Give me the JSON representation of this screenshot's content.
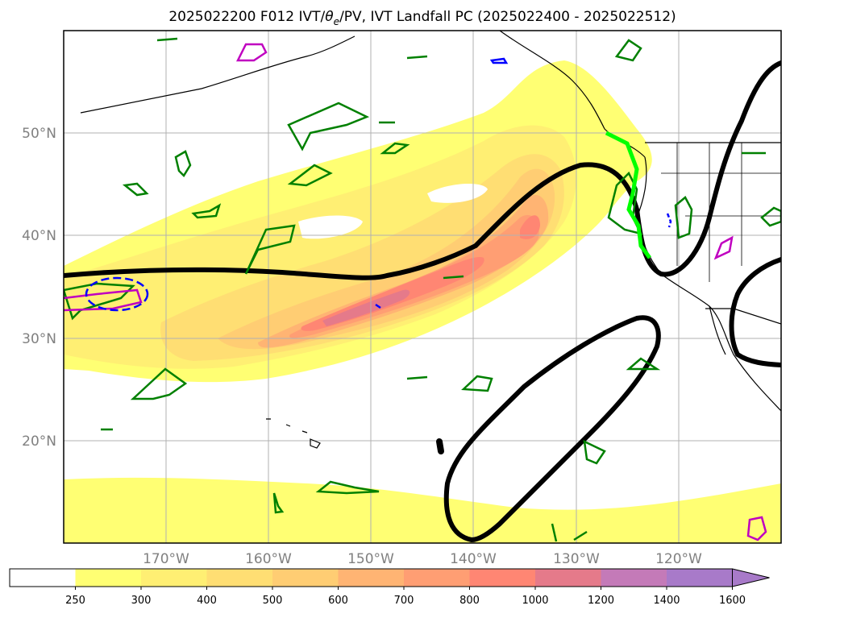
{
  "chart_data": {
    "type": "filled-contour map",
    "title": "2025022200 F012 IVT/θe/PV, IVT Landfall PC (2025022400 - 2025022512)",
    "title_parts": {
      "pre": "2025022200 F012 IVT/",
      "theta": "θ",
      "sub": "e",
      "post": "/PV, IVT Landfall PC (2025022400 - 2025022512)"
    },
    "map_extent": {
      "lon": [
        -180,
        -110
      ],
      "lat": [
        10,
        60
      ]
    },
    "grid": true,
    "xticks": [
      {
        "lon": -170,
        "label": "170°W"
      },
      {
        "lon": -160,
        "label": "160°W"
      },
      {
        "lon": -150,
        "label": "150°W"
      },
      {
        "lon": -140,
        "label": "140°W"
      },
      {
        "lon": -130,
        "label": "130°W"
      },
      {
        "lon": -120,
        "label": "120°W"
      }
    ],
    "yticks": [
      {
        "lat": 20,
        "label": "20°N"
      },
      {
        "lat": 30,
        "label": "30°N"
      },
      {
        "lat": 40,
        "label": "40°N"
      },
      {
        "lat": 50,
        "label": "50°N"
      }
    ],
    "colorbar": {
      "levels": [
        250,
        300,
        400,
        500,
        600,
        700,
        800,
        1000,
        1200,
        1400,
        1600
      ],
      "colors": [
        "#ffffff",
        "#ffff73",
        "#ffef73",
        "#ffde73",
        "#ffcd73",
        "#ffb473",
        "#ff9e73",
        "#ff8673",
        "#e57a8a",
        "#c47ab8",
        "#a87ac9"
      ],
      "extend": "max"
    }
  }
}
